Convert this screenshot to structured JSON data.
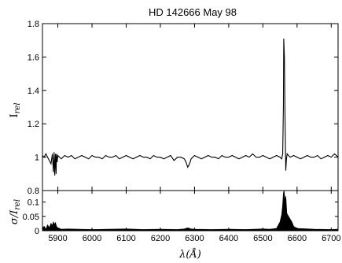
{
  "chart_data": [
    {
      "type": "line",
      "title": "HD 142666 May 98",
      "ylabel_main": "I",
      "ylabel_sub": "rel",
      "xlim": [
        5855,
        6720
      ],
      "ylim": [
        0.8,
        1.8
      ],
      "xticks": [
        5900,
        6000,
        6100,
        6200,
        6300,
        6400,
        6500,
        6600,
        6700
      ],
      "yticks": [
        1.0,
        1.2,
        1.4,
        1.6,
        1.8
      ],
      "ytick_labels": [
        "1",
        "1.2",
        "1.4",
        "1.6",
        "1.8"
      ],
      "series": [
        {
          "x": [
            5855,
            5860,
            5865,
            5870,
            5875,
            5880,
            5884,
            5887,
            5889,
            5891,
            5893,
            5895,
            5896,
            5898,
            5900,
            5905,
            5910,
            5920,
            5930,
            5940,
            5950,
            5960,
            5970,
            5980,
            5990,
            6000,
            6010,
            6020,
            6030,
            6040,
            6050,
            6060,
            6070,
            6080,
            6090,
            6100,
            6110,
            6120,
            6130,
            6140,
            6150,
            6160,
            6170,
            6180,
            6190,
            6200,
            6210,
            6220,
            6230,
            6240,
            6250,
            6260,
            6270,
            6275,
            6280,
            6283,
            6287,
            6290,
            6295,
            6300,
            6310,
            6320,
            6330,
            6340,
            6350,
            6360,
            6370,
            6380,
            6390,
            6400,
            6410,
            6420,
            6430,
            6440,
            6450,
            6460,
            6470,
            6480,
            6490,
            6500,
            6510,
            6520,
            6530,
            6540,
            6550,
            6555,
            6558,
            6560,
            6561,
            6563,
            6565,
            6567,
            6569,
            6571,
            6575,
            6580,
            6590,
            6600,
            6610,
            6620,
            6630,
            6640,
            6650,
            6660,
            6670,
            6680,
            6690,
            6700,
            6710,
            6720
          ],
          "y": [
            1.01,
            1.0,
            1.02,
            1.0,
            0.98,
            0.96,
            1.02,
            0.91,
            1.03,
            0.89,
            1.02,
            0.9,
            1.02,
            0.97,
            1.01,
            1.0,
            0.99,
            1.01,
            1.0,
            1.01,
            0.99,
            1.0,
            1.01,
            1.0,
            0.99,
            1.01,
            1.0,
            1.0,
            0.99,
            1.01,
            1.0,
            1.0,
            1.01,
            0.99,
            1.0,
            1.01,
            1.0,
            0.99,
            1.0,
            1.01,
            1.0,
            1.0,
            0.99,
            1.01,
            1.0,
            1.0,
            0.99,
            1.0,
            1.01,
            0.98,
            1.0,
            1.0,
            0.99,
            0.97,
            0.94,
            0.95,
            0.97,
            0.99,
            1.0,
            1.01,
            1.0,
            0.99,
            1.0,
            1.01,
            1.0,
            1.0,
            0.99,
            1.01,
            1.0,
            1.0,
            1.01,
            1.0,
            0.99,
            1.0,
            1.01,
            1.0,
            1.02,
            1.0,
            1.0,
            1.01,
            1.0,
            0.99,
            1.0,
            1.01,
            1.0,
            0.99,
            1.02,
            1.3,
            1.71,
            1.6,
            1.2,
            0.92,
            0.99,
            1.02,
            1.01,
            1.0,
            1.01,
            1.0,
            0.99,
            1.0,
            1.01,
            1.0,
            1.0,
            1.01,
            0.99,
            1.0,
            1.01,
            1.0,
            1.02,
            1.0
          ]
        }
      ]
    },
    {
      "type": "area",
      "ylabel_main": "σ/I",
      "ylabel_sub": "rel",
      "xlabel": "λ(Å)",
      "xlim": [
        5855,
        6720
      ],
      "ylim": [
        0,
        0.14
      ],
      "xticks": [
        5900,
        6000,
        6100,
        6200,
        6300,
        6400,
        6500,
        6600,
        6700
      ],
      "yticks": [
        0,
        0.05,
        0.1
      ],
      "ytick_labels": [
        "0",
        "0.05",
        "0.1"
      ],
      "series": [
        {
          "x": [
            5855,
            5860,
            5865,
            5870,
            5875,
            5880,
            5884,
            5887,
            5890,
            5893,
            5896,
            5900,
            5905,
            5910,
            5930,
            5960,
            6000,
            6050,
            6100,
            6150,
            6200,
            6250,
            6270,
            6280,
            6290,
            6300,
            6350,
            6400,
            6450,
            6500,
            6520,
            6540,
            6550,
            6555,
            6558,
            6560,
            6562,
            6565,
            6567,
            6570,
            6575,
            6580,
            6585,
            6590,
            6600,
            6650,
            6700,
            6720
          ],
          "y": [
            0.01,
            0.015,
            0.005,
            0.02,
            0.01,
            0.025,
            0.018,
            0.03,
            0.022,
            0.028,
            0.015,
            0.01,
            0.008,
            0.005,
            0.006,
            0.005,
            0.004,
            0.005,
            0.006,
            0.004,
            0.005,
            0.004,
            0.006,
            0.01,
            0.006,
            0.005,
            0.004,
            0.005,
            0.004,
            0.006,
            0.005,
            0.008,
            0.03,
            0.055,
            0.09,
            0.13,
            0.14,
            0.1,
            0.12,
            0.06,
            0.05,
            0.04,
            0.03,
            0.015,
            0.008,
            0.005,
            0.004,
            0.005
          ]
        }
      ]
    }
  ]
}
